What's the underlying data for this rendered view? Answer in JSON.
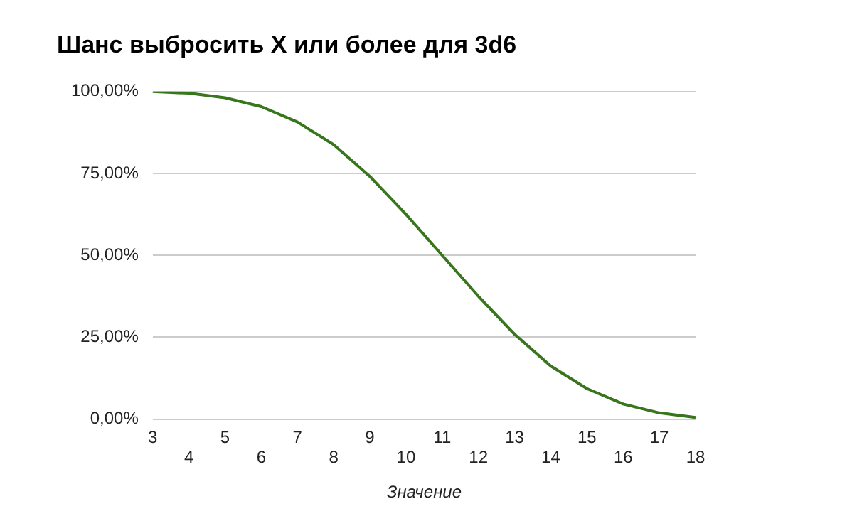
{
  "chart_data": {
    "type": "line",
    "title": "Шанс выбросить X или более для 3d6",
    "xlabel": "Значение",
    "categories": [
      "3",
      "4",
      "5",
      "6",
      "7",
      "8",
      "9",
      "10",
      "11",
      "12",
      "13",
      "14",
      "15",
      "16",
      "17",
      "18"
    ],
    "series": [
      {
        "color": "#38761d",
        "values": [
          100,
          99.5,
          98.1,
          95.4,
          90.7,
          83.8,
          74.1,
          62.5,
          50,
          37.5,
          25.9,
          16.2,
          9.3,
          4.6,
          1.9,
          0.5
        ]
      }
    ],
    "ylim": [
      0,
      100
    ],
    "yticks": [
      {
        "value": 0,
        "label": "0,00%"
      },
      {
        "value": 25,
        "label": "25,00%"
      },
      {
        "value": 50,
        "label": "50,00%"
      },
      {
        "value": 75,
        "label": "75,00%"
      },
      {
        "value": 100,
        "label": "100,00%"
      }
    ],
    "grid": "y",
    "legend": false,
    "marker": "none",
    "line_style": "solid"
  }
}
